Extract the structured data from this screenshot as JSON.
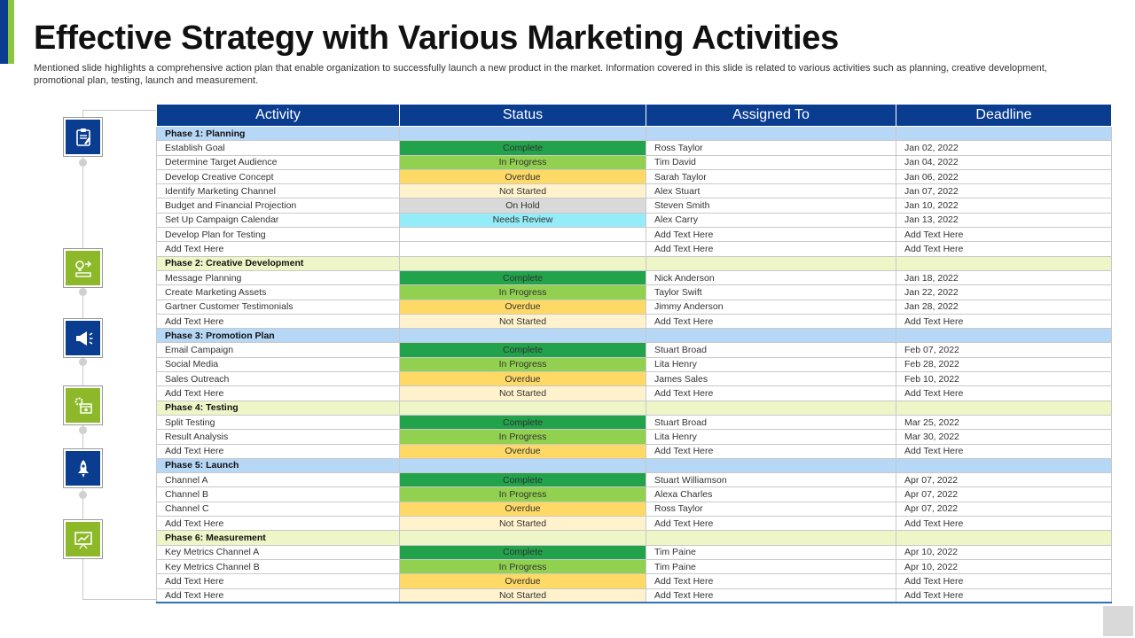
{
  "title": "Effective Strategy with Various Marketing Activities",
  "subtitle": "Mentioned slide highlights a comprehensive action plan that enable organization to successfully launch a new product in the market. Information covered in this slide is related to various activities such as planning, creative development, promotional plan, testing, launch and measurement.",
  "colors": {
    "brand_blue": "#0a3d8f",
    "brand_green": "#8cb829",
    "complete": "#22a24a",
    "in_progress": "#92d050",
    "overdue": "#ffd966",
    "not_started": "#fff2cc",
    "on_hold": "#d9d9d9",
    "needs_review": "#93ecf7"
  },
  "rail_icons": [
    {
      "name": "clipboard-icon",
      "color": "blue"
    },
    {
      "name": "ideas-icon",
      "color": "green"
    },
    {
      "name": "megaphone-icon",
      "color": "blue"
    },
    {
      "name": "gear-browser-icon",
      "color": "green"
    },
    {
      "name": "rocket-icon",
      "color": "blue"
    },
    {
      "name": "presentation-chart-icon",
      "color": "green"
    }
  ],
  "table": {
    "headers": {
      "activity": "Activity",
      "status": "Status",
      "assigned": "Assigned To",
      "deadline": "Deadline"
    },
    "phases": [
      {
        "label": "Phase 1: Planning",
        "color": "blue",
        "rows": [
          {
            "activity": "Establish Goal",
            "status": "Complete",
            "assigned": "Ross Taylor",
            "deadline": "Jan 02, 2022"
          },
          {
            "activity": "Determine Target Audience",
            "status": "In Progress",
            "assigned": "Tim David",
            "deadline": "Jan 04, 2022"
          },
          {
            "activity": "Develop Creative Concept",
            "status": "Overdue",
            "assigned": "Sarah Taylor",
            "deadline": "Jan 06, 2022"
          },
          {
            "activity": "Identify Marketing Channel",
            "status": "Not Started",
            "assigned": "Alex Stuart",
            "deadline": "Jan 07, 2022"
          },
          {
            "activity": "Budget and Financial Projection",
            "status": "On Hold",
            "assigned": "Steven Smith",
            "deadline": "Jan 10, 2022"
          },
          {
            "activity": "Set Up Campaign Calendar",
            "status": "Needs Review",
            "assigned": "Alex Carry",
            "deadline": "Jan 13, 2022"
          },
          {
            "activity": "Develop Plan  for Testing",
            "status": "",
            "assigned": "Add Text Here",
            "deadline": "Add Text Here"
          },
          {
            "activity": "Add Text Here",
            "status": "",
            "assigned": "Add Text Here",
            "deadline": "Add Text Here"
          }
        ]
      },
      {
        "label": "Phase 2: Creative Development",
        "color": "green",
        "rows": [
          {
            "activity": "Message Planning",
            "status": "Complete",
            "assigned": "Nick Anderson",
            "deadline": "Jan 18, 2022"
          },
          {
            "activity": "Create Marketing Assets",
            "status": "In Progress",
            "assigned": "Taylor Swift",
            "deadline": "Jan 22, 2022"
          },
          {
            "activity": "Gartner Customer Testimonials",
            "status": "Overdue",
            "assigned": "Jimmy  Anderson",
            "deadline": "Jan 28, 2022"
          },
          {
            "activity": "Add Text Here",
            "status": "Not Started",
            "assigned": "Add Text Here",
            "deadline": "Add Text Here"
          }
        ]
      },
      {
        "label": "Phase 3: Promotion Plan",
        "color": "blue",
        "rows": [
          {
            "activity": "Email  Campaign",
            "status": "Complete",
            "assigned": "Stuart Broad",
            "deadline": "Feb 07, 2022"
          },
          {
            "activity": "Social Media",
            "status": "In Progress",
            "assigned": "Lita Henry",
            "deadline": "Feb 28, 2022"
          },
          {
            "activity": "Sales Outreach",
            "status": "Overdue",
            "assigned": "James Sales",
            "deadline": "Feb 10, 2022"
          },
          {
            "activity": "Add Text Here",
            "status": "Not Started",
            "assigned": "Add Text Here",
            "deadline": "Add Text Here"
          }
        ]
      },
      {
        "label": "Phase 4: Testing",
        "color": "green",
        "rows": [
          {
            "activity": "Split Testing",
            "status": "Complete",
            "assigned": "Stuart Broad",
            "deadline": "Mar 25, 2022"
          },
          {
            "activity": "Result Analysis",
            "status": "In Progress",
            "assigned": "Lita Henry",
            "deadline": "Mar 30, 2022"
          },
          {
            "activity": "Add Text Here",
            "status": "Overdue",
            "assigned": "Add Text Here",
            "deadline": "Add Text Here"
          }
        ]
      },
      {
        "label": "Phase 5: Launch",
        "color": "blue",
        "rows": [
          {
            "activity": "Channel A",
            "status": "Complete",
            "assigned": "Stuart Williamson",
            "deadline": "Apr 07, 2022"
          },
          {
            "activity": "Channel B",
            "status": "In Progress",
            "assigned": "Alexa Charles",
            "deadline": "Apr 07, 2022"
          },
          {
            "activity": "Channel C",
            "status": "Overdue",
            "assigned": "Ross Taylor",
            "deadline": "Apr 07, 2022"
          },
          {
            "activity": "Add Text Here",
            "status": "Not Started",
            "assigned": "Add Text Here",
            "deadline": "Add Text Here"
          }
        ]
      },
      {
        "label": "Phase 6: Measurement",
        "color": "green",
        "rows": [
          {
            "activity": "Key Metrics Channel A",
            "status": "Complete",
            "assigned": "Tim Paine",
            "deadline": "Apr 10, 2022"
          },
          {
            "activity": "Key Metrics Channel B",
            "status": "In Progress",
            "assigned": "Tim Paine",
            "deadline": "Apr 10, 2022"
          },
          {
            "activity": "Add Text Here",
            "status": "Overdue",
            "assigned": "Add Text Here",
            "deadline": "Add Text Here"
          },
          {
            "activity": "Add Text Here",
            "status": "Not Started",
            "assigned": "Add Text Here",
            "deadline": "Add Text Here"
          }
        ]
      }
    ]
  }
}
